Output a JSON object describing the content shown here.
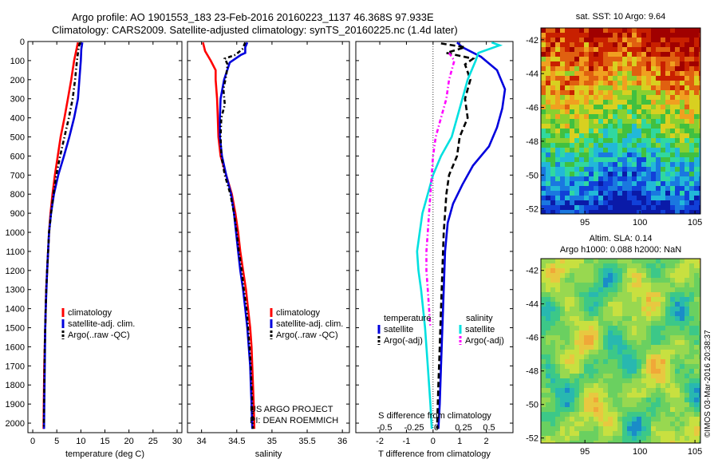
{
  "header": {
    "line1": "Argo profile: AO 1901553_183 23-Feb-2016 20160223_1137 46.368S 97.933E",
    "line2": "Climatology: CARS2009. Satellite-adjusted climatology: synTS_20160225.nc (1.4d later)"
  },
  "credit": "©IMOS 03-Mar-2016 20:38:37",
  "colors": {
    "climatology": "#ff0000",
    "satellite": "#0000dd",
    "argo": "#000000",
    "sal_diff": "#00e0e0",
    "argo_adj": "#ff00ff"
  },
  "chart_data": [
    {
      "type": "line",
      "name": "temperature_panel",
      "xlabel": "temperature (deg C)",
      "ylabel": "",
      "xlim": [
        -1,
        31
      ],
      "ylim": [
        2050,
        0
      ],
      "xticks": [
        "0",
        "5",
        "10",
        "15",
        "20",
        "25",
        "30"
      ],
      "yticks": [
        "0",
        "100",
        "200",
        "300",
        "400",
        "500",
        "600",
        "700",
        "800",
        "900",
        "1000",
        "1100",
        "1200",
        "1300",
        "1400",
        "1500",
        "1600",
        "1700",
        "1800",
        "1900",
        "2000"
      ],
      "legend": [
        "climatology",
        "satellite-adj. clim.",
        "Argo(..raw -QC)"
      ],
      "series": [
        {
          "name": "climatology",
          "color": "#ff0000",
          "style": "solid",
          "points": [
            [
              9.4,
              5
            ],
            [
              9.1,
              40
            ],
            [
              8.6,
              100
            ],
            [
              8.0,
              200
            ],
            [
              7.3,
              300
            ],
            [
              6.6,
              400
            ],
            [
              5.8,
              500
            ],
            [
              5.2,
              600
            ],
            [
              4.6,
              700
            ],
            [
              4.1,
              800
            ],
            [
              3.7,
              900
            ],
            [
              3.4,
              1000
            ],
            [
              3.2,
              1100
            ],
            [
              3.0,
              1200
            ],
            [
              2.8,
              1300
            ],
            [
              2.7,
              1400
            ],
            [
              2.6,
              1500
            ],
            [
              2.5,
              1600
            ],
            [
              2.4,
              1700
            ],
            [
              2.35,
              1800
            ],
            [
              2.3,
              1900
            ],
            [
              2.25,
              2030
            ]
          ]
        },
        {
          "name": "satellite-adj. clim.",
          "color": "#0000dd",
          "style": "solid",
          "points": [
            [
              10.3,
              5
            ],
            [
              10.1,
              40
            ],
            [
              10.0,
              100
            ],
            [
              9.7,
              200
            ],
            [
              9.4,
              300
            ],
            [
              8.6,
              400
            ],
            [
              7.6,
              500
            ],
            [
              6.5,
              600
            ],
            [
              5.3,
              700
            ],
            [
              4.4,
              800
            ],
            [
              3.8,
              900
            ],
            [
              3.4,
              1000
            ],
            [
              3.2,
              1100
            ],
            [
              3.0,
              1200
            ],
            [
              2.85,
              1300
            ],
            [
              2.7,
              1400
            ],
            [
              2.6,
              1500
            ],
            [
              2.55,
              1600
            ],
            [
              2.5,
              1700
            ],
            [
              2.45,
              1800
            ],
            [
              2.4,
              1900
            ],
            [
              2.35,
              2030
            ]
          ]
        },
        {
          "name": "Argo(..raw -QC)",
          "color": "#000000",
          "style": "dashdot",
          "points": [
            [
              9.8,
              5
            ],
            [
              9.5,
              40
            ],
            [
              9.2,
              100
            ],
            [
              8.8,
              200
            ],
            [
              8.3,
              300
            ],
            [
              7.5,
              400
            ],
            [
              6.6,
              500
            ],
            [
              5.7,
              600
            ],
            [
              4.9,
              700
            ],
            [
              4.3,
              800
            ],
            [
              3.8,
              900
            ],
            [
              3.4,
              1000
            ],
            [
              3.2,
              1100
            ],
            [
              3.0,
              1200
            ],
            [
              2.8,
              1300
            ],
            [
              2.7,
              1400
            ],
            [
              2.6,
              1500
            ],
            [
              2.5,
              1600
            ],
            [
              2.45,
              1700
            ],
            [
              2.4,
              1800
            ],
            [
              2.35,
              1900
            ],
            [
              2.3,
              2030
            ]
          ]
        }
      ]
    },
    {
      "type": "line",
      "name": "salinity_panel",
      "xlabel": "salinity",
      "ylabel": "",
      "xlim": [
        33.8,
        36.1
      ],
      "ylim": [
        2050,
        0
      ],
      "xticks": [
        "34",
        "34.5",
        "35",
        "35.5",
        "36"
      ],
      "legend": [
        "climatology",
        "satellite-adj. clim.",
        "Argo(..raw -QC)"
      ],
      "annotations": [
        "US ARGO PROJECT",
        "PI: DEAN ROEMMICH"
      ],
      "series": [
        {
          "name": "climatology",
          "color": "#ff0000",
          "style": "solid",
          "points": [
            [
              34.02,
              5
            ],
            [
              34.05,
              50
            ],
            [
              34.13,
              100
            ],
            [
              34.2,
              150
            ],
            [
              34.2,
              200
            ],
            [
              34.22,
              300
            ],
            [
              34.23,
              400
            ],
            [
              34.24,
              500
            ],
            [
              34.27,
              600
            ],
            [
              34.35,
              700
            ],
            [
              34.43,
              800
            ],
            [
              34.48,
              900
            ],
            [
              34.52,
              1000
            ],
            [
              34.55,
              1100
            ],
            [
              34.59,
              1200
            ],
            [
              34.63,
              1300
            ],
            [
              34.66,
              1400
            ],
            [
              34.69,
              1500
            ],
            [
              34.71,
              1600
            ],
            [
              34.72,
              1700
            ],
            [
              34.73,
              1800
            ],
            [
              34.74,
              1900
            ],
            [
              34.75,
              2030
            ]
          ]
        },
        {
          "name": "satellite-adj. clim.",
          "color": "#0000dd",
          "style": "solid",
          "points": [
            [
              34.65,
              5
            ],
            [
              34.62,
              30
            ],
            [
              34.62,
              60
            ],
            [
              34.56,
              70
            ],
            [
              34.5,
              85
            ],
            [
              34.4,
              110
            ],
            [
              34.32,
              200
            ],
            [
              34.27,
              300
            ],
            [
              34.26,
              400
            ],
            [
              34.26,
              500
            ],
            [
              34.29,
              600
            ],
            [
              34.35,
              700
            ],
            [
              34.42,
              800
            ],
            [
              34.46,
              900
            ],
            [
              34.49,
              1000
            ],
            [
              34.52,
              1100
            ],
            [
              34.55,
              1200
            ],
            [
              34.59,
              1300
            ],
            [
              34.62,
              1400
            ],
            [
              34.65,
              1500
            ],
            [
              34.67,
              1600
            ],
            [
              34.69,
              1700
            ],
            [
              34.7,
              1800
            ],
            [
              34.71,
              1900
            ],
            [
              34.72,
              2030
            ]
          ]
        },
        {
          "name": "Argo(..raw -QC)",
          "color": "#000000",
          "style": "dashdot",
          "points": [
            [
              34.62,
              5
            ],
            [
              34.58,
              40
            ],
            [
              34.48,
              70
            ],
            [
              34.33,
              90
            ],
            [
              34.37,
              120
            ],
            [
              34.35,
              180
            ],
            [
              34.31,
              250
            ],
            [
              34.33,
              330
            ],
            [
              34.28,
              400
            ],
            [
              34.27,
              500
            ],
            [
              34.28,
              600
            ],
            [
              34.33,
              700
            ],
            [
              34.41,
              800
            ],
            [
              34.46,
              900
            ],
            [
              34.5,
              1000
            ],
            [
              34.53,
              1100
            ],
            [
              34.57,
              1200
            ],
            [
              34.6,
              1300
            ],
            [
              34.64,
              1400
            ],
            [
              34.66,
              1500
            ],
            [
              34.68,
              1600
            ],
            [
              34.7,
              1700
            ],
            [
              34.71,
              1800
            ],
            [
              34.72,
              1900
            ],
            [
              34.73,
              2030
            ]
          ]
        }
      ]
    },
    {
      "type": "line",
      "name": "difference_panel",
      "xlabel": "T difference from climatology",
      "x2label": "S difference from climatology",
      "xlim": [
        -2.9,
        3.0
      ],
      "ylim": [
        2050,
        0
      ],
      "xticks": [
        "-2",
        "-1",
        "0",
        "1",
        "2"
      ],
      "x2ticks": [
        "-0.5",
        "-0.25",
        "0",
        "0.25",
        "0.5"
      ],
      "legend_headers": [
        "temperature",
        "salinity"
      ],
      "legend": [
        "satellite",
        "Argo(-adj)",
        "satellite",
        "Argo(-adj)"
      ],
      "series": [
        {
          "name": "temperature satellite",
          "color": "#0000dd",
          "style": "solid",
          "points": [
            [
              0.9,
              5
            ],
            [
              1.1,
              30
            ],
            [
              1.8,
              80
            ],
            [
              2.4,
              150
            ],
            [
              2.7,
              250
            ],
            [
              2.6,
              350
            ],
            [
              2.4,
              450
            ],
            [
              2.1,
              550
            ],
            [
              1.5,
              650
            ],
            [
              1.1,
              750
            ],
            [
              0.75,
              850
            ],
            [
              0.55,
              950
            ],
            [
              0.45,
              1100
            ],
            [
              0.4,
              1300
            ],
            [
              0.35,
              1500
            ],
            [
              0.3,
              1700
            ],
            [
              0.25,
              1900
            ],
            [
              0.2,
              2030
            ]
          ]
        },
        {
          "name": "temperature Argo(-adj)",
          "color": "#000000",
          "style": "dashed",
          "points": [
            [
              0.3,
              10
            ],
            [
              1.2,
              30
            ],
            [
              0.5,
              60
            ],
            [
              1.5,
              90
            ],
            [
              1.2,
              120
            ],
            [
              1.4,
              200
            ],
            [
              1.2,
              300
            ],
            [
              1.3,
              400
            ],
            [
              1.0,
              500
            ],
            [
              0.9,
              600
            ],
            [
              0.6,
              700
            ],
            [
              0.5,
              800
            ],
            [
              0.45,
              900
            ],
            [
              0.4,
              1000
            ],
            [
              0.35,
              1200
            ],
            [
              0.3,
              1400
            ],
            [
              0.25,
              1600
            ],
            [
              0.2,
              1800
            ],
            [
              0.15,
              2030
            ]
          ]
        },
        {
          "name": "salinity satellite",
          "color": "#00e0e0",
          "style": "solid",
          "points": [
            [
              2.2,
              5
            ],
            [
              2.5,
              20
            ],
            [
              1.7,
              60
            ],
            [
              1.6,
              100
            ],
            [
              1.3,
              200
            ],
            [
              1.1,
              300
            ],
            [
              0.9,
              400
            ],
            [
              0.7,
              500
            ],
            [
              0.3,
              600
            ],
            [
              0.0,
              700
            ],
            [
              -0.2,
              800
            ],
            [
              -0.4,
              900
            ],
            [
              -0.5,
              1000
            ],
            [
              -0.6,
              1100
            ],
            [
              -0.55,
              1200
            ],
            [
              -0.45,
              1300
            ],
            [
              -0.3,
              1500
            ],
            [
              -0.2,
              1700
            ],
            [
              -0.1,
              1900
            ],
            [
              -0.05,
              2030
            ]
          ]
        },
        {
          "name": "salinity Argo(-adj)",
          "color": "#ff00ff",
          "style": "dashdot",
          "points": [
            [
              0.6,
              60
            ],
            [
              0.8,
              100
            ],
            [
              0.6,
              200
            ],
            [
              0.5,
              300
            ],
            [
              0.3,
              400
            ],
            [
              0.1,
              500
            ],
            [
              0.0,
              600
            ],
            [
              -0.05,
              700
            ],
            [
              -0.1,
              800
            ],
            [
              -0.15,
              900
            ],
            [
              -0.2,
              1000
            ],
            [
              -0.25,
              1100
            ],
            [
              -0.25,
              1200
            ],
            [
              -0.2,
              1300
            ],
            [
              -0.15,
              1400
            ],
            [
              -0.1,
              1500
            ]
          ]
        }
      ]
    },
    {
      "type": "heatmap",
      "name": "sat_sst_map",
      "title": "sat. SST: 10 Argo: 9.64",
      "xlim": [
        91,
        105.5
      ],
      "ylim": [
        -52.3,
        -41.3
      ],
      "xticks": [
        "95",
        "100",
        "105"
      ],
      "yticks": [
        "-42",
        "-44",
        "-46",
        "-48",
        "-50",
        "-52"
      ]
    },
    {
      "type": "heatmap",
      "name": "altim_sla_map",
      "title": "Altim. SLA: 0.14",
      "subtitle": "Argo h1000: 0.088 h2000: NaN",
      "xlim": [
        91,
        105.5
      ],
      "ylim": [
        -52.3,
        -41.3
      ],
      "xticks": [
        "95",
        "100",
        "105"
      ],
      "yticks": [
        "-42",
        "-44",
        "-46",
        "-48",
        "-50",
        "-52"
      ]
    }
  ]
}
